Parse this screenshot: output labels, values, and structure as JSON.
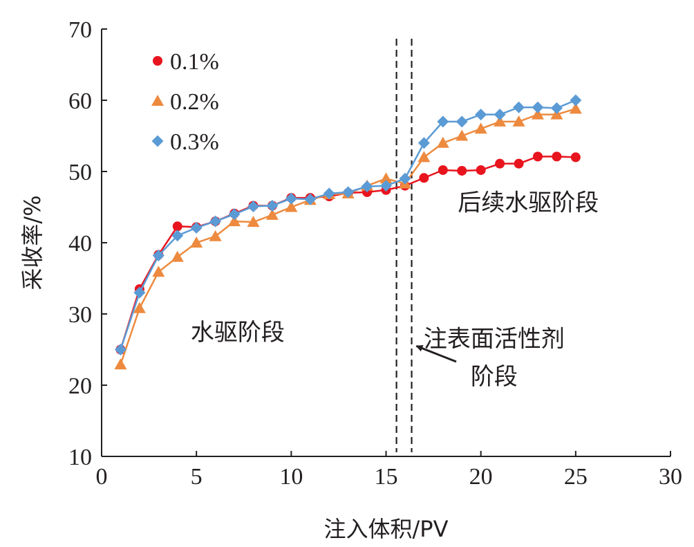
{
  "chart_data": {
    "type": "line",
    "xlabel": "注入体积/PV",
    "ylabel": "采收率/%",
    "xlim": [
      0,
      30
    ],
    "ylim": [
      10,
      70
    ],
    "xticks": [
      0,
      5,
      10,
      15,
      20,
      25,
      30
    ],
    "yticks": [
      10,
      20,
      30,
      40,
      50,
      60,
      70
    ],
    "grid": false,
    "legend_position": "top-left",
    "series": [
      {
        "name": "0.1%",
        "color": "#e8141e",
        "marker": "circle",
        "x": [
          1,
          2,
          3,
          4,
          5,
          6,
          7,
          8,
          9,
          10,
          11,
          12,
          13,
          14,
          15,
          16,
          17,
          18,
          19,
          20,
          21,
          22,
          23,
          24,
          25
        ],
        "y": [
          25.0,
          33.5,
          38.3,
          42.3,
          42.2,
          43.0,
          44.1,
          45.2,
          45.2,
          46.3,
          46.3,
          46.5,
          47.0,
          47.1,
          47.4,
          48.0,
          49.1,
          50.2,
          50.1,
          50.2,
          51.1,
          51.1,
          52.1,
          52.1,
          52.0
        ]
      },
      {
        "name": "0.2%",
        "color": "#ed8a3f",
        "marker": "triangle",
        "x": [
          1,
          2,
          3,
          4,
          5,
          6,
          7,
          8,
          9,
          10,
          11,
          12,
          13,
          14,
          15,
          16,
          17,
          18,
          19,
          20,
          21,
          22,
          23,
          24,
          25
        ],
        "y": [
          22.9,
          30.8,
          35.9,
          38.0,
          40.0,
          40.9,
          43.0,
          42.9,
          43.9,
          45.0,
          46.0,
          46.8,
          46.9,
          48.0,
          49.0,
          48.3,
          52.0,
          54.0,
          55.0,
          56.0,
          57.0,
          57.0,
          58.0,
          58.0,
          58.8
        ]
      },
      {
        "name": "0.3%",
        "color": "#5b9bd5",
        "marker": "diamond",
        "x": [
          1,
          2,
          3,
          4,
          5,
          6,
          7,
          8,
          9,
          10,
          11,
          12,
          13,
          14,
          15,
          16,
          17,
          18,
          19,
          20,
          21,
          22,
          23,
          24,
          25
        ],
        "y": [
          25.0,
          33.0,
          38.2,
          41.0,
          42.1,
          43.0,
          44.0,
          45.1,
          45.2,
          46.2,
          46.1,
          46.9,
          47.1,
          47.9,
          48.0,
          49.0,
          54.0,
          57.0,
          57.0,
          58.0,
          58.0,
          59.0,
          59.0,
          58.9,
          60.0
        ]
      }
    ],
    "reference_lines": [
      {
        "x": 15.55,
        "style": "dashed"
      },
      {
        "x": 16.35,
        "style": "dashed"
      }
    ],
    "annotations": {
      "water_flood": "水驱阶段",
      "surfactant_line1": "注表面活性剂",
      "surfactant_line2": "阶段",
      "post_water_flood": "后续水驱阶段"
    },
    "annotation_anchors": {
      "water_flood": [
        4.7,
        26.3
      ],
      "surfactant_line1": [
        20.7,
        25.4
      ],
      "surfactant_line2": [
        20.7,
        20.1
      ],
      "post_water_flood": [
        22.5,
        44.5
      ]
    },
    "arrow": {
      "from": [
        18.7,
        23.3
      ],
      "to": [
        16.6,
        25.5
      ]
    }
  }
}
